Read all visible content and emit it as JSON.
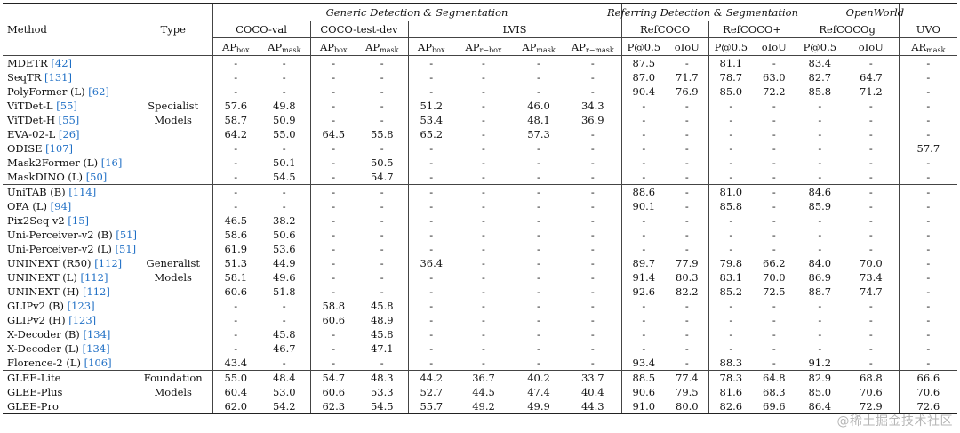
{
  "headers": {
    "method": "Method",
    "type": "Type",
    "group_generic": "Generic Detection & Segmentation",
    "group_referring": "Referring Detection & Segmentation",
    "group_openworld": "OpenWorld",
    "datasets": [
      "COCO-val",
      "COCO-test-dev",
      "LVIS",
      "RefCOCO",
      "RefCOCO+",
      "RefCOCOg",
      "UVO"
    ],
    "metrics": [
      {
        "main": "AP",
        "sub": "box"
      },
      {
        "main": "AP",
        "sub": "mask"
      },
      {
        "main": "AP",
        "sub": "box"
      },
      {
        "main": "AP",
        "sub": "mask"
      },
      {
        "main": "AP",
        "sub": "box"
      },
      {
        "main": "AP",
        "sub": "r−box"
      },
      {
        "main": "AP",
        "sub": "mask"
      },
      {
        "main": "AP",
        "sub": "r−mask"
      },
      {
        "main": "P@0.5",
        "sub": ""
      },
      {
        "main": "oIoU",
        "sub": ""
      },
      {
        "main": "P@0.5",
        "sub": ""
      },
      {
        "main": "oIoU",
        "sub": ""
      },
      {
        "main": "P@0.5",
        "sub": ""
      },
      {
        "main": "oIoU",
        "sub": ""
      },
      {
        "main": "AR",
        "sub": "mask"
      }
    ]
  },
  "sections": [
    {
      "type_line1": "Specialist",
      "type_line2": "Models",
      "type_row": 3,
      "rows": [
        {
          "name": "MDETR",
          "cite": "[42]",
          "v": [
            "-",
            "-",
            "-",
            "-",
            "-",
            "-",
            "-",
            "-",
            "87.5",
            "-",
            "81.1",
            "-",
            "83.4",
            "-",
            "-"
          ]
        },
        {
          "name": "SeqTR",
          "cite": "[131]",
          "v": [
            "-",
            "-",
            "-",
            "-",
            "-",
            "-",
            "-",
            "-",
            "87.0",
            "71.7",
            "78.7",
            "63.0",
            "82.7",
            "64.7",
            "-"
          ]
        },
        {
          "name": "PolyFormer (L)",
          "cite": "[62]",
          "v": [
            "-",
            "-",
            "-",
            "-",
            "-",
            "-",
            "-",
            "-",
            "90.4",
            "76.9",
            "85.0",
            "72.2",
            "85.8",
            "71.2",
            "-"
          ]
        },
        {
          "name": "ViTDet-L",
          "cite": "[55]",
          "v": [
            "57.6",
            "49.8",
            "-",
            "-",
            "51.2",
            "-",
            "46.0",
            "34.3",
            "-",
            "-",
            "-",
            "-",
            "-",
            "-",
            "-"
          ]
        },
        {
          "name": "ViTDet-H",
          "cite": "[55]",
          "v": [
            "58.7",
            "50.9",
            "-",
            "-",
            "53.4",
            "-",
            "48.1",
            "36.9",
            "-",
            "-",
            "-",
            "-",
            "-",
            "-",
            "-"
          ]
        },
        {
          "name": "EVA-02-L",
          "cite": "[26]",
          "v": [
            "64.2",
            "55.0",
            "64.5",
            "55.8",
            "65.2",
            "-",
            "57.3",
            "-",
            "-",
            "-",
            "-",
            "-",
            "-",
            "-",
            "-"
          ]
        },
        {
          "name": "ODISE",
          "cite": "[107]",
          "v": [
            "-",
            "-",
            "-",
            "-",
            "-",
            "-",
            "-",
            "-",
            "-",
            "-",
            "-",
            "-",
            "-",
            "-",
            "57.7"
          ]
        },
        {
          "name": "Mask2Former (L)",
          "cite": "[16]",
          "v": [
            "-",
            "50.1",
            "-",
            "50.5",
            "-",
            "-",
            "-",
            "-",
            "-",
            "-",
            "-",
            "-",
            "-",
            "-",
            "-"
          ]
        },
        {
          "name": "MaskDINO (L)",
          "cite": "[50]",
          "v": [
            "-",
            "54.5",
            "-",
            "54.7",
            "-",
            "-",
            "-",
            "-",
            "-",
            "-",
            "-",
            "-",
            "-",
            "-",
            "-"
          ]
        }
      ]
    },
    {
      "type_line1": "Generalist",
      "type_line2": "Models",
      "type_row": 5,
      "rows": [
        {
          "name": "UniTAB (B)",
          "cite": "[114]",
          "v": [
            "-",
            "-",
            "-",
            "-",
            "-",
            "-",
            "-",
            "-",
            "88.6",
            "-",
            "81.0",
            "-",
            "84.6",
            "-",
            "-"
          ]
        },
        {
          "name": "OFA (L)",
          "cite": "[94]",
          "v": [
            "-",
            "-",
            "-",
            "-",
            "-",
            "-",
            "-",
            "-",
            "90.1",
            "-",
            "85.8",
            "-",
            "85.9",
            "-",
            "-"
          ]
        },
        {
          "name": "Pix2Seq v2 ",
          "cite": "[15]",
          "v": [
            "46.5",
            "38.2",
            "-",
            "-",
            "-",
            "-",
            "-",
            "-",
            "-",
            "-",
            "-",
            "-",
            "-",
            "-",
            "-"
          ]
        },
        {
          "name": "Uni-Perceiver-v2 (B)",
          "cite": "[51]",
          "v": [
            "58.6",
            "50.6",
            "-",
            "-",
            "-",
            "-",
            "-",
            "-",
            "-",
            "-",
            "-",
            "-",
            "-",
            "-",
            "-"
          ]
        },
        {
          "name": "Uni-Perceiver-v2 (L)",
          "cite": "[51]",
          "v": [
            "61.9",
            "53.6",
            "-",
            "-",
            "-",
            "-",
            "-",
            "-",
            "-",
            "-",
            "-",
            "-",
            "-",
            "-",
            "-"
          ]
        },
        {
          "name": "UNINEXT (R50)",
          "cite": "[112]",
          "v": [
            "51.3",
            "44.9",
            "-",
            "-",
            "36.4",
            "-",
            "-",
            "-",
            "89.7",
            "77.9",
            "79.8",
            "66.2",
            "84.0",
            "70.0",
            "-"
          ]
        },
        {
          "name": "UNINEXT (L)",
          "cite": "[112]",
          "v": [
            "58.1",
            "49.6",
            "-",
            "-",
            "-",
            "-",
            "-",
            "-",
            "91.4",
            "80.3",
            "83.1",
            "70.0",
            "86.9",
            "73.4",
            "-"
          ]
        },
        {
          "name": "UNINEXT (H)",
          "cite": "[112]",
          "v": [
            "60.6",
            "51.8",
            "-",
            "-",
            "-",
            "-",
            "-",
            "-",
            "92.6",
            "82.2",
            "85.2",
            "72.5",
            "88.7",
            "74.7",
            "-"
          ]
        },
        {
          "name": "GLIPv2 (B)",
          "cite": "[123]",
          "v": [
            "-",
            "-",
            "58.8",
            "45.8",
            "-",
            "-",
            "-",
            "-",
            "-",
            "-",
            "-",
            "-",
            "-",
            "-",
            "-"
          ]
        },
        {
          "name": "GLIPv2 (H)",
          "cite": "[123]",
          "v": [
            "-",
            "-",
            "60.6",
            "48.9",
            "-",
            "-",
            "-",
            "-",
            "-",
            "-",
            "-",
            "-",
            "-",
            "-",
            "-"
          ]
        },
        {
          "name": "X-Decoder (B)",
          "cite": "[134]",
          "v": [
            "-",
            "45.8",
            "-",
            "45.8",
            "-",
            "-",
            "-",
            "-",
            "-",
            "-",
            "-",
            "-",
            "-",
            "-",
            "-"
          ]
        },
        {
          "name": "X-Decoder (L)",
          "cite": "[134]",
          "v": [
            "-",
            "46.7",
            "-",
            "47.1",
            "-",
            "-",
            "-",
            "-",
            "-",
            "-",
            "-",
            "-",
            "-",
            "-",
            "-"
          ]
        },
        {
          "name": "Florence-2 (L)",
          "cite": "[106]",
          "v": [
            "43.4",
            "-",
            "-",
            "-",
            "-",
            "-",
            "-",
            "-",
            "93.4",
            "-",
            "88.3",
            "-",
            "91.2",
            "-",
            "-"
          ]
        }
      ]
    },
    {
      "type_line1": "Foundation",
      "type_line2": "Models",
      "type_row": 0,
      "rows": [
        {
          "name": "GLEE-Lite",
          "cite": "",
          "v": [
            "55.0",
            "48.4",
            "54.7",
            "48.3",
            "44.2",
            "36.7",
            "40.2",
            "33.7",
            "88.5",
            "77.4",
            "78.3",
            "64.8",
            "82.9",
            "68.8",
            "66.6"
          ]
        },
        {
          "name": "GLEE-Plus",
          "cite": "",
          "v": [
            "60.4",
            "53.0",
            "60.6",
            "53.3",
            "52.7",
            "44.5",
            "47.4",
            "40.4",
            "90.6",
            "79.5",
            "81.6",
            "68.3",
            "85.0",
            "70.6",
            "70.6"
          ]
        },
        {
          "name": "GLEE-Pro",
          "cite": "",
          "v": [
            "62.0",
            "54.2",
            "62.3",
            "54.5",
            "55.7",
            "49.2",
            "49.9",
            "44.3",
            "91.0",
            "80.0",
            "82.6",
            "69.6",
            "86.4",
            "72.9",
            "72.6"
          ]
        }
      ]
    }
  ],
  "watermark": "@稀土掘金技术社区"
}
